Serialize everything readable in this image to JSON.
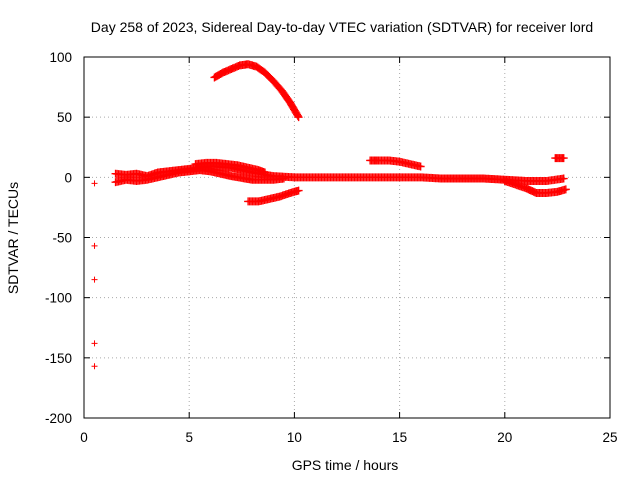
{
  "chart_data": {
    "type": "scatter",
    "title": "Day 258 of 2023, Sidereal Day-to-day VTEC variation (SDTVAR) for receiver lord",
    "xlabel": "GPS time / hours",
    "ylabel": "SDTVAR / TECUs",
    "xlim": [
      0,
      25
    ],
    "ylim": [
      -200,
      100
    ],
    "xticks": [
      0,
      5,
      10,
      15,
      20,
      25
    ],
    "yticks": [
      -200,
      -150,
      -100,
      -50,
      0,
      50,
      100
    ],
    "xtick_labels": [
      "0",
      "5",
      "10",
      "15",
      "20",
      "25"
    ],
    "ytick_labels": [
      "-200",
      "-150",
      "-100",
      "-50",
      "0",
      "50",
      "100"
    ],
    "grid": true,
    "marker": "+",
    "color": "#ff0000",
    "series": [
      {
        "name": "isolated early points",
        "x": [
          0.5,
          0.5,
          0.5,
          0.5,
          0.5
        ],
        "y": [
          -5,
          -57,
          -85,
          -138,
          -157
        ]
      },
      {
        "name": "high arc",
        "x": [
          6.2,
          6.6,
          7.0,
          7.4,
          7.8,
          8.2,
          8.6,
          9.0,
          9.4,
          9.8,
          10.2
        ],
        "y": [
          83,
          87,
          90,
          93,
          94,
          92,
          87,
          80,
          72,
          62,
          50
        ]
      },
      {
        "name": "near-zero band",
        "x": [
          1.5,
          2.0,
          2.5,
          3.0,
          3.5,
          4.0,
          4.5,
          5.0,
          6.0,
          7.0,
          8.0,
          9.0,
          10.0,
          11.0,
          12.0,
          13.0,
          14.0,
          15.0,
          16.0,
          17.0,
          18.0,
          19.0,
          20.0,
          21.0,
          22.0,
          22.8
        ],
        "y": [
          3,
          2,
          3,
          1,
          4,
          5,
          6,
          7,
          9,
          8,
          4,
          1,
          0,
          0,
          0,
          0,
          0,
          0,
          0,
          -1,
          -1,
          -1,
          -2,
          -3,
          -3,
          -1
        ]
      },
      {
        "name": "lower band",
        "x": [
          1.5,
          2.0,
          2.5,
          3.0,
          3.5,
          4.0,
          4.5,
          5.0,
          5.5,
          6.0,
          7.0,
          8.0,
          9.0,
          9.5
        ],
        "y": [
          -4,
          -2,
          -3,
          -2,
          0,
          2,
          4,
          5,
          6,
          5,
          1,
          -2,
          -2,
          -1
        ]
      },
      {
        "name": "upper band",
        "x": [
          5.3,
          5.8,
          6.3,
          6.8,
          7.3,
          7.8,
          8.3,
          8.6
        ],
        "y": [
          11,
          12,
          12,
          11,
          10,
          8,
          6,
          4
        ]
      },
      {
        "name": "negative segment",
        "x": [
          7.8,
          8.3,
          8.8,
          9.3,
          9.8,
          10.2
        ],
        "y": [
          -20,
          -20,
          -18,
          -16,
          -13,
          -11
        ]
      },
      {
        "name": "plateau at 14",
        "x": [
          13.6,
          14.0,
          14.5,
          15.0,
          15.5,
          16.0
        ],
        "y": [
          14,
          14,
          14,
          13,
          11,
          9
        ]
      },
      {
        "name": "late lower",
        "x": [
          20.0,
          20.5,
          21.0,
          21.5,
          22.0,
          22.5,
          22.9
        ],
        "y": [
          -3,
          -6,
          -9,
          -13,
          -13,
          -12,
          -10
        ]
      },
      {
        "name": "late upper",
        "x": [
          22.4,
          22.6,
          22.8
        ],
        "y": [
          16,
          16,
          16
        ]
      }
    ]
  }
}
